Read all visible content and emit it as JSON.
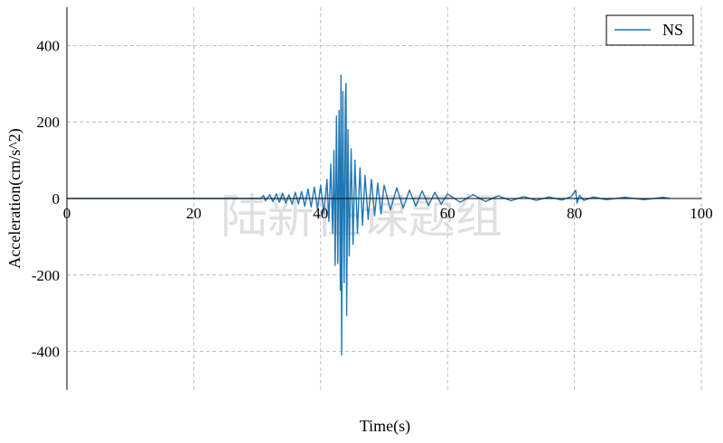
{
  "chart_data": {
    "type": "line",
    "title": "",
    "xlabel": "Time(s)",
    "ylabel": "Acceleration(cm/s^2)",
    "xlim": [
      0,
      100
    ],
    "ylim": [
      -500,
      500
    ],
    "xticks": [
      0,
      20,
      40,
      60,
      80,
      100
    ],
    "yticks": [
      -400,
      -200,
      0,
      200,
      400
    ],
    "grid": true,
    "legend_position": "top-right",
    "watermark": "陆新征课题组",
    "series": [
      {
        "name": "NS",
        "color": "#1f77b4",
        "points": [
          [
            0,
            0
          ],
          [
            30.5,
            0
          ],
          [
            31,
            8
          ],
          [
            31.3,
            -6
          ],
          [
            32,
            10
          ],
          [
            32.5,
            -8
          ],
          [
            33,
            12
          ],
          [
            33.5,
            -10
          ],
          [
            34,
            14
          ],
          [
            34.5,
            -12
          ],
          [
            35,
            10
          ],
          [
            35.5,
            -15
          ],
          [
            36,
            16
          ],
          [
            36.5,
            -14
          ],
          [
            37,
            18
          ],
          [
            37.5,
            -20
          ],
          [
            38,
            25
          ],
          [
            38.5,
            -22
          ],
          [
            39,
            30
          ],
          [
            39.5,
            -28
          ],
          [
            40,
            35
          ],
          [
            40.5,
            -40
          ],
          [
            41,
            50
          ],
          [
            41.3,
            -60
          ],
          [
            41.6,
            90
          ],
          [
            41.9,
            -90
          ],
          [
            42.1,
            125
          ],
          [
            42.3,
            -175
          ],
          [
            42.5,
            215
          ],
          [
            42.7,
            -170
          ],
          [
            42.9,
            230
          ],
          [
            43.1,
            -240
          ],
          [
            43.2,
            322
          ],
          [
            43.3,
            -409
          ],
          [
            43.5,
            280
          ],
          [
            43.7,
            -220
          ],
          [
            43.9,
            260
          ],
          [
            44.0,
            301
          ],
          [
            44.1,
            -306
          ],
          [
            44.3,
            180
          ],
          [
            44.5,
            -150
          ],
          [
            44.8,
            130
          ],
          [
            45.1,
            -120
          ],
          [
            45.4,
            100
          ],
          [
            45.8,
            -90
          ],
          [
            46.2,
            80
          ],
          [
            46.6,
            -70
          ],
          [
            47,
            60
          ],
          [
            47.5,
            -55
          ],
          [
            48,
            50
          ],
          [
            48.5,
            -45
          ],
          [
            49,
            40
          ],
          [
            49.5,
            -40
          ],
          [
            50,
            35
          ],
          [
            51,
            -30
          ],
          [
            52,
            28
          ],
          [
            53,
            -25
          ],
          [
            54,
            22
          ],
          [
            55,
            -20
          ],
          [
            56,
            20
          ],
          [
            57,
            -18
          ],
          [
            58,
            16
          ],
          [
            59,
            -15
          ],
          [
            60,
            12
          ],
          [
            62,
            -10
          ],
          [
            64,
            10
          ],
          [
            66,
            -8
          ],
          [
            68,
            7
          ],
          [
            70,
            -6
          ],
          [
            72,
            5
          ],
          [
            74,
            -5
          ],
          [
            76,
            4
          ],
          [
            78,
            -4
          ],
          [
            79.5,
            5
          ],
          [
            80.2,
            22
          ],
          [
            80.4,
            -12
          ],
          [
            80.8,
            8
          ],
          [
            81.5,
            -5
          ],
          [
            83,
            4
          ],
          [
            85,
            -3
          ],
          [
            88,
            3
          ],
          [
            91,
            -3
          ],
          [
            94,
            3
          ],
          [
            95,
            0
          ]
        ]
      }
    ]
  }
}
